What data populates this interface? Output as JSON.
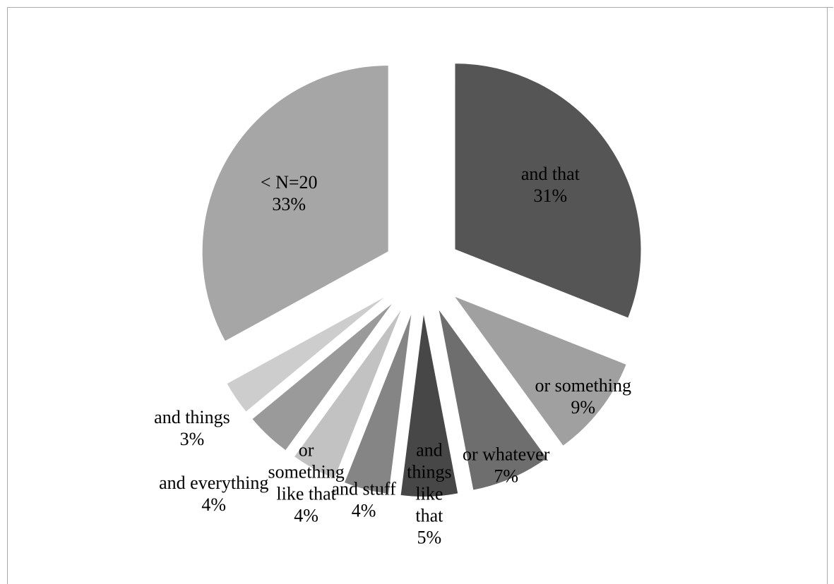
{
  "chart_data": {
    "type": "pie",
    "exploded": true,
    "title": "",
    "categories": [
      "and that",
      "or something",
      "or whatever",
      "and things like that",
      "and stuff",
      "or something like that",
      "and everything",
      "and things",
      "< N=20"
    ],
    "values": [
      31,
      9,
      7,
      5,
      4,
      4,
      4,
      3,
      33
    ],
    "labels": [
      {
        "lines": [
          "and that",
          "31%"
        ]
      },
      {
        "lines": [
          "or something",
          "9%"
        ]
      },
      {
        "lines": [
          "or whatever",
          "7%"
        ]
      },
      {
        "lines": [
          "and",
          "things",
          "like",
          "that",
          "5%"
        ]
      },
      {
        "lines": [
          "and stuff",
          "4%"
        ]
      },
      {
        "lines": [
          "or",
          "something",
          "like that",
          "4%"
        ]
      },
      {
        "lines": [
          "and everything",
          "4%"
        ]
      },
      {
        "lines": [
          "and things",
          "3%"
        ]
      },
      {
        "lines": [
          "< N=20",
          "33%"
        ]
      }
    ],
    "colors": [
      "#555555",
      "#a0a0a0",
      "#6e6e6e",
      "#474747",
      "#858585",
      "#c2c2c2",
      "#9a9a9a",
      "#cdcdcd",
      "#a6a6a6"
    ],
    "legend": "none"
  }
}
